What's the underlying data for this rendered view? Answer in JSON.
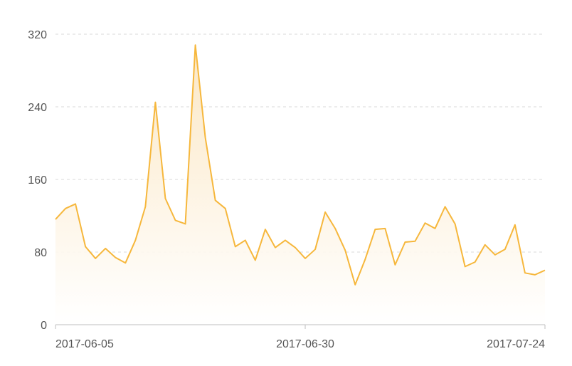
{
  "chart_data": {
    "type": "area",
    "title": "",
    "xlabel": "",
    "ylabel": "",
    "ylim": [
      0,
      320
    ],
    "yticks": [
      0,
      80,
      160,
      240,
      320
    ],
    "xtick_labels": [
      "2017-06-05",
      "2017-06-30",
      "2017-07-24"
    ],
    "grid": true,
    "colors": {
      "line": "#F6B73C",
      "fill_top": "#FBE6C2",
      "fill_bottom": "#FFFFFF"
    },
    "series": [
      {
        "x": [
          "2017-06-05",
          "2017-06-06",
          "2017-06-07",
          "2017-06-08",
          "2017-06-09",
          "2017-06-10",
          "2017-06-11",
          "2017-06-12",
          "2017-06-13",
          "2017-06-14",
          "2017-06-15",
          "2017-06-16",
          "2017-06-17",
          "2017-06-18",
          "2017-06-19",
          "2017-06-20",
          "2017-06-21",
          "2017-06-22",
          "2017-06-23",
          "2017-06-24",
          "2017-06-25",
          "2017-06-26",
          "2017-06-27",
          "2017-06-28",
          "2017-06-29",
          "2017-06-30",
          "2017-07-01",
          "2017-07-02",
          "2017-07-03",
          "2017-07-04",
          "2017-07-05",
          "2017-07-06",
          "2017-07-07",
          "2017-07-08",
          "2017-07-09",
          "2017-07-10",
          "2017-07-11",
          "2017-07-12",
          "2017-07-13",
          "2017-07-14",
          "2017-07-15",
          "2017-07-16",
          "2017-07-17",
          "2017-07-18",
          "2017-07-19",
          "2017-07-20",
          "2017-07-21",
          "2017-07-22",
          "2017-07-23",
          "2017-07-24"
        ],
        "values": [
          116,
          128,
          133,
          86,
          73,
          84,
          74,
          68,
          93,
          130,
          245,
          139,
          115,
          111,
          308,
          206,
          137,
          128,
          86,
          93,
          71,
          105,
          85,
          93,
          85,
          73,
          83,
          124,
          106,
          82,
          44,
          72,
          105,
          106,
          66,
          91,
          92,
          112,
          106,
          130,
          111,
          64,
          69,
          88,
          77,
          83,
          110,
          57,
          55,
          60
        ]
      }
    ]
  }
}
